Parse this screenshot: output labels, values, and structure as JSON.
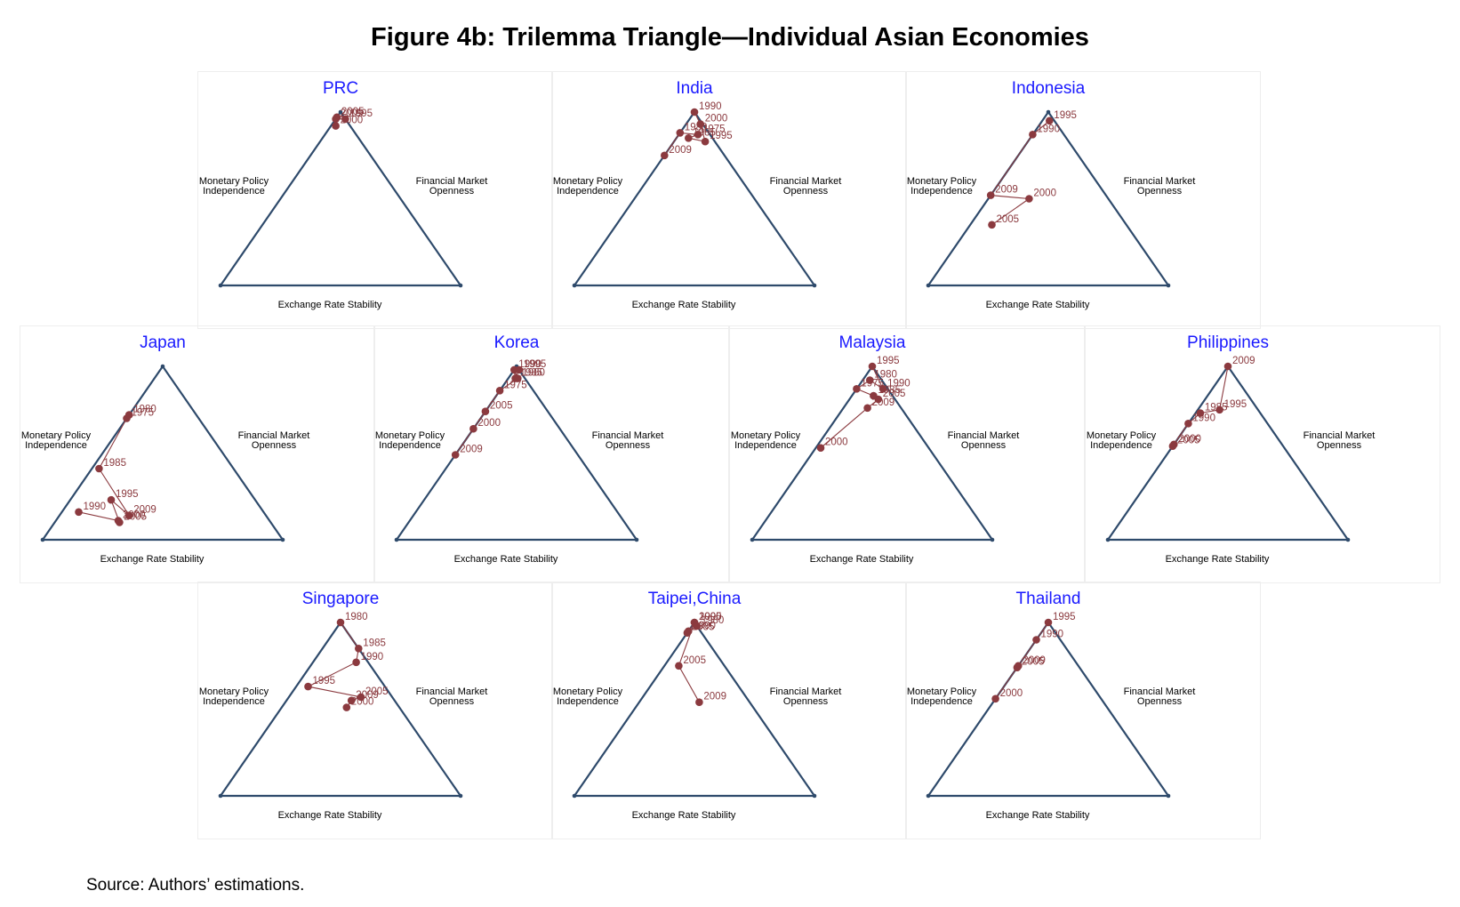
{
  "title": "Figure 4b: Trilemma Triangle—Individual Asian Economies",
  "source": "Source: Authors’ estimations.",
  "colors": {
    "triangle": "#2e4a6b",
    "series": "#8b3a3f",
    "panel_title": "#1a1aff"
  },
  "axis_labels": {
    "left": [
      "Monetary Policy",
      "Independence"
    ],
    "right": [
      "Financial Market",
      "Openness"
    ],
    "bottom": "Exchange Rate Stability"
  },
  "chart_data": [
    {
      "type": "scatter",
      "title": "PRC",
      "points": [
        {
          "label": "2000",
          "l": 0.06,
          "r": 0.02
        },
        {
          "label": "2005",
          "l": 0.03,
          "r": 0.0
        },
        {
          "label": "2009",
          "l": 0.04,
          "r": 0.0
        },
        {
          "label": "1995",
          "l": 0.0,
          "r": 0.04
        }
      ]
    },
    {
      "type": "scatter",
      "title": "India",
      "points": [
        {
          "label": "2009",
          "l": 0.25,
          "r": 0.0
        },
        {
          "label": "1980",
          "l": 0.12,
          "r": 0.0
        },
        {
          "label": "1975",
          "l": 0.05,
          "r": 0.08
        },
        {
          "label": "1985",
          "l": 0.1,
          "r": 0.05
        },
        {
          "label": "1995",
          "l": 0.04,
          "r": 0.13
        },
        {
          "label": "2000",
          "l": 0.01,
          "r": 0.06
        },
        {
          "label": "1990",
          "l": 0.0,
          "r": 0.0
        }
      ]
    },
    {
      "type": "scatter",
      "title": "Indonesia",
      "points": [
        {
          "label": "2005",
          "l": 0.56,
          "r": 0.09
        },
        {
          "label": "2000",
          "l": 0.33,
          "r": 0.17
        },
        {
          "label": "2009",
          "l": 0.48,
          "r": 0.0
        },
        {
          "label": "1990",
          "l": 0.13,
          "r": 0.0
        },
        {
          "label": "1995",
          "l": 0.02,
          "r": 0.03
        }
      ]
    },
    {
      "type": "scatter",
      "title": "Japan",
      "points": [
        {
          "label": "1990",
          "l": 0.77,
          "r": 0.07
        },
        {
          "label": "2000",
          "l": 0.63,
          "r": 0.26
        },
        {
          "label": "2005",
          "l": 0.63,
          "r": 0.27
        },
        {
          "label": "1995",
          "l": 0.6,
          "r": 0.17
        },
        {
          "label": "2009",
          "l": 0.57,
          "r": 0.29
        },
        {
          "label": "1985",
          "l": 0.56,
          "r": 0.03
        },
        {
          "label": "1975",
          "l": 0.3,
          "r": 0.0
        },
        {
          "label": "1980",
          "l": 0.28,
          "r": 0.0
        }
      ]
    },
    {
      "type": "scatter",
      "title": "Korea",
      "points": [
        {
          "label": "2009",
          "l": 0.51,
          "r": 0.0
        },
        {
          "label": "2000",
          "l": 0.36,
          "r": 0.0
        },
        {
          "label": "2005",
          "l": 0.26,
          "r": 0.0
        },
        {
          "label": "1975",
          "l": 0.14,
          "r": 0.0
        },
        {
          "label": "1980",
          "l": 0.03,
          "r": 0.04
        },
        {
          "label": "1990",
          "l": 0.02,
          "r": 0.0
        },
        {
          "label": "1985",
          "l": 0.04,
          "r": 0.03
        },
        {
          "label": "1995",
          "l": 0.0,
          "r": 0.02
        }
      ]
    },
    {
      "type": "scatter",
      "title": "Malaysia",
      "points": [
        {
          "label": "2000",
          "l": 0.45,
          "r": 0.02
        },
        {
          "label": "2009",
          "l": 0.14,
          "r": 0.1
        },
        {
          "label": "2005",
          "l": 0.07,
          "r": 0.12
        },
        {
          "label": "1985",
          "l": 0.08,
          "r": 0.09
        },
        {
          "label": "1975",
          "l": 0.13,
          "r": 0.0
        },
        {
          "label": "1980",
          "l": 0.05,
          "r": 0.03
        },
        {
          "label": "1990",
          "l": 0.02,
          "r": 0.11
        },
        {
          "label": "1995",
          "l": 0.0,
          "r": 0.0
        }
      ]
    },
    {
      "type": "scatter",
      "title": "Philippines",
      "points": [
        {
          "label": "2000",
          "l": 0.45,
          "r": 0.0
        },
        {
          "label": "2005",
          "l": 0.46,
          "r": 0.0
        },
        {
          "label": "1990",
          "l": 0.33,
          "r": 0.0
        },
        {
          "label": "1985",
          "l": 0.25,
          "r": 0.02
        },
        {
          "label": "1995",
          "l": 0.16,
          "r": 0.09
        },
        {
          "label": "2009",
          "l": 0.0,
          "r": 0.0
        }
      ]
    },
    {
      "type": "scatter",
      "title": "Singapore",
      "points": [
        {
          "label": "2000",
          "l": 0.22,
          "r": 0.27
        },
        {
          "label": "2009",
          "l": 0.18,
          "r": 0.27
        },
        {
          "label": "2005",
          "l": 0.13,
          "r": 0.3
        },
        {
          "label": "1995",
          "l": 0.32,
          "r": 0.05
        },
        {
          "label": "1990",
          "l": 0.05,
          "r": 0.18
        },
        {
          "label": "1985",
          "l": 0.0,
          "r": 0.15
        },
        {
          "label": "1980",
          "l": 0.0,
          "r": 0.0
        }
      ]
    },
    {
      "type": "scatter",
      "title": "Taipei,China",
      "points": [
        {
          "label": "2009",
          "l": 0.21,
          "r": 0.25
        },
        {
          "label": "2005",
          "l": 0.19,
          "r": 0.06
        },
        {
          "label": "2000",
          "l": 0.0,
          "r": 0.0
        },
        {
          "label": "1990",
          "l": 0.05,
          "r": 0.0
        },
        {
          "label": "1985",
          "l": 0.06,
          "r": 0.0
        },
        {
          "label": "1980",
          "l": 0.0,
          "r": 0.02
        },
        {
          "label": "1995",
          "l": 0.0,
          "r": 0.0
        }
      ]
    },
    {
      "type": "scatter",
      "title": "Thailand",
      "points": [
        {
          "label": "2000",
          "l": 0.44,
          "r": 0.0
        },
        {
          "label": "2005",
          "l": 0.26,
          "r": 0.0
        },
        {
          "label": "2009",
          "l": 0.25,
          "r": 0.0
        },
        {
          "label": "1990",
          "l": 0.1,
          "r": 0.0
        },
        {
          "label": "1995",
          "l": 0.0,
          "r": 0.0
        }
      ]
    }
  ]
}
